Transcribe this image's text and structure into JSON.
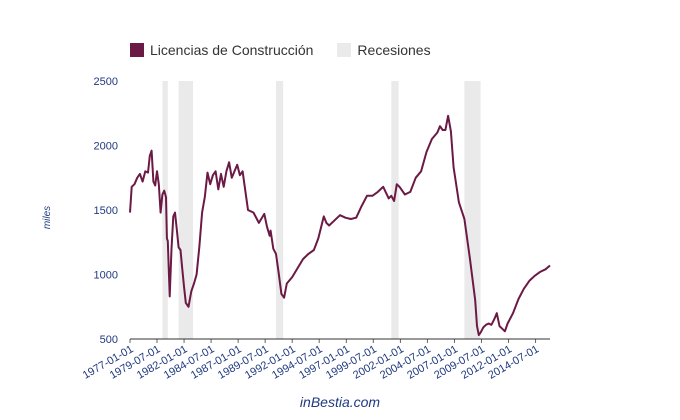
{
  "chart_data": {
    "type": "line",
    "title": "",
    "xlabel": "",
    "ylabel": "miles",
    "ylim": [
      500,
      2500
    ],
    "y_ticks": [
      500,
      1000,
      1500,
      2000,
      2500
    ],
    "grid": false,
    "legend_position": "top-left",
    "x_range": [
      "1977-01-01",
      "2015-11-01"
    ],
    "x_tick_labels": [
      "1977-01-01",
      "1979-07-01",
      "1982-01-01",
      "1984-07-01",
      "1987-01-01",
      "1989-07-01",
      "1992-01-01",
      "1994-07-01",
      "1997-01-01",
      "1999-07-01",
      "2002-01-01",
      "2004-07-01",
      "2007-01-01",
      "2009-07-01",
      "2012-01-01",
      "2014-07-01"
    ],
    "series": [
      {
        "name": "Licencias de Construcción",
        "color": "#6b1a45",
        "x": [
          "1977-01-01",
          "1977-03-01",
          "1977-06-01",
          "1977-09-01",
          "1977-12-01",
          "1978-03-01",
          "1978-06-01",
          "1978-09-01",
          "1978-11-01",
          "1979-01-01",
          "1979-03-01",
          "1979-05-01",
          "1979-07-01",
          "1979-09-01",
          "1979-11-01",
          "1980-01-01",
          "1980-03-01",
          "1980-05-01",
          "1980-06-01",
          "1980-07-01",
          "1980-09-01",
          "1980-11-01",
          "1981-01-01",
          "1981-03-01",
          "1981-05-01",
          "1981-07-01",
          "1981-09-01",
          "1981-11-01",
          "1982-01-01",
          "1982-03-01",
          "1982-06-01",
          "1982-09-01",
          "1982-12-01",
          "1983-03-01",
          "1983-06-01",
          "1983-09-01",
          "1983-12-01",
          "1984-03-01",
          "1984-06-01",
          "1984-09-01",
          "1984-12-01",
          "1985-03-01",
          "1985-06-01",
          "1985-09-01",
          "1985-12-01",
          "1986-03-01",
          "1986-06-01",
          "1986-09-01",
          "1986-12-01",
          "1987-03-01",
          "1987-06-01",
          "1987-09-01",
          "1987-12-01",
          "1988-06-01",
          "1988-12-01",
          "1989-06-01",
          "1989-09-01",
          "1989-12-01",
          "1990-01-01",
          "1990-04-01",
          "1990-07-01",
          "1990-10-01",
          "1991-01-01",
          "1991-04-01",
          "1991-07-01",
          "1992-01-01",
          "1992-07-01",
          "1993-01-01",
          "1993-07-01",
          "1994-01-01",
          "1994-06-01",
          "1994-12-01",
          "1995-03-01",
          "1995-06-01",
          "1995-12-01",
          "1996-06-01",
          "1996-12-01",
          "1997-06-01",
          "1997-12-01",
          "1998-06-01",
          "1998-12-01",
          "1999-06-01",
          "1999-12-01",
          "2000-06-01",
          "2000-12-01",
          "2001-03-01",
          "2001-06-01",
          "2001-09-01",
          "2001-12-01",
          "2002-06-01",
          "2002-12-01",
          "2003-06-01",
          "2003-12-01",
          "2004-06-01",
          "2004-12-01",
          "2005-06-01",
          "2005-09-01",
          "2005-12-01",
          "2006-03-01",
          "2006-06-01",
          "2006-09-01",
          "2006-12-01",
          "2007-06-01",
          "2007-12-01",
          "2008-06-01",
          "2008-12-01",
          "2009-02-01",
          "2009-04-01",
          "2009-06-01",
          "2009-09-01",
          "2009-12-01",
          "2010-03-01",
          "2010-06-01",
          "2010-09-01",
          "2010-12-01",
          "2011-03-01",
          "2011-06-01",
          "2011-09-01",
          "2011-12-01",
          "2012-06-01",
          "2012-12-01",
          "2013-06-01",
          "2013-12-01",
          "2014-06-01",
          "2014-12-01",
          "2015-06-01",
          "2015-11-01"
        ],
        "values": [
          1480,
          1680,
          1700,
          1750,
          1780,
          1720,
          1800,
          1790,
          1920,
          1960,
          1720,
          1690,
          1800,
          1700,
          1480,
          1620,
          1650,
          1600,
          1280,
          1260,
          830,
          1200,
          1450,
          1480,
          1350,
          1210,
          1190,
          1040,
          900,
          780,
          750,
          870,
          930,
          1000,
          1220,
          1480,
          1600,
          1790,
          1700,
          1770,
          1800,
          1660,
          1780,
          1680,
          1800,
          1870,
          1750,
          1800,
          1850,
          1770,
          1800,
          1650,
          1500,
          1480,
          1400,
          1470,
          1370,
          1300,
          1340,
          1200,
          1160,
          1010,
          850,
          820,
          930,
          980,
          1050,
          1120,
          1160,
          1190,
          1280,
          1450,
          1400,
          1380,
          1420,
          1460,
          1440,
          1430,
          1440,
          1530,
          1610,
          1610,
          1640,
          1680,
          1590,
          1610,
          1570,
          1700,
          1680,
          1620,
          1640,
          1750,
          1800,
          1950,
          2050,
          2100,
          2150,
          2120,
          2120,
          2230,
          2110,
          1830,
          1560,
          1430,
          1130,
          800,
          600,
          530,
          550,
          590,
          610,
          620,
          610,
          650,
          700,
          600,
          580,
          560,
          620,
          700,
          810,
          890,
          950,
          990,
          1020,
          1040,
          1070
        ]
      },
      {
        "name": "Recesiones",
        "color": "#eaeaea",
        "periods": [
          [
            "1980-01-01",
            "1980-07-01"
          ],
          [
            "1981-07-01",
            "1982-11-01"
          ],
          [
            "1990-07-01",
            "1991-03-01"
          ],
          [
            "2001-03-01",
            "2001-11-01"
          ],
          [
            "2007-12-01",
            "2009-06-01"
          ]
        ]
      }
    ],
    "footer": "inBestia.com"
  }
}
